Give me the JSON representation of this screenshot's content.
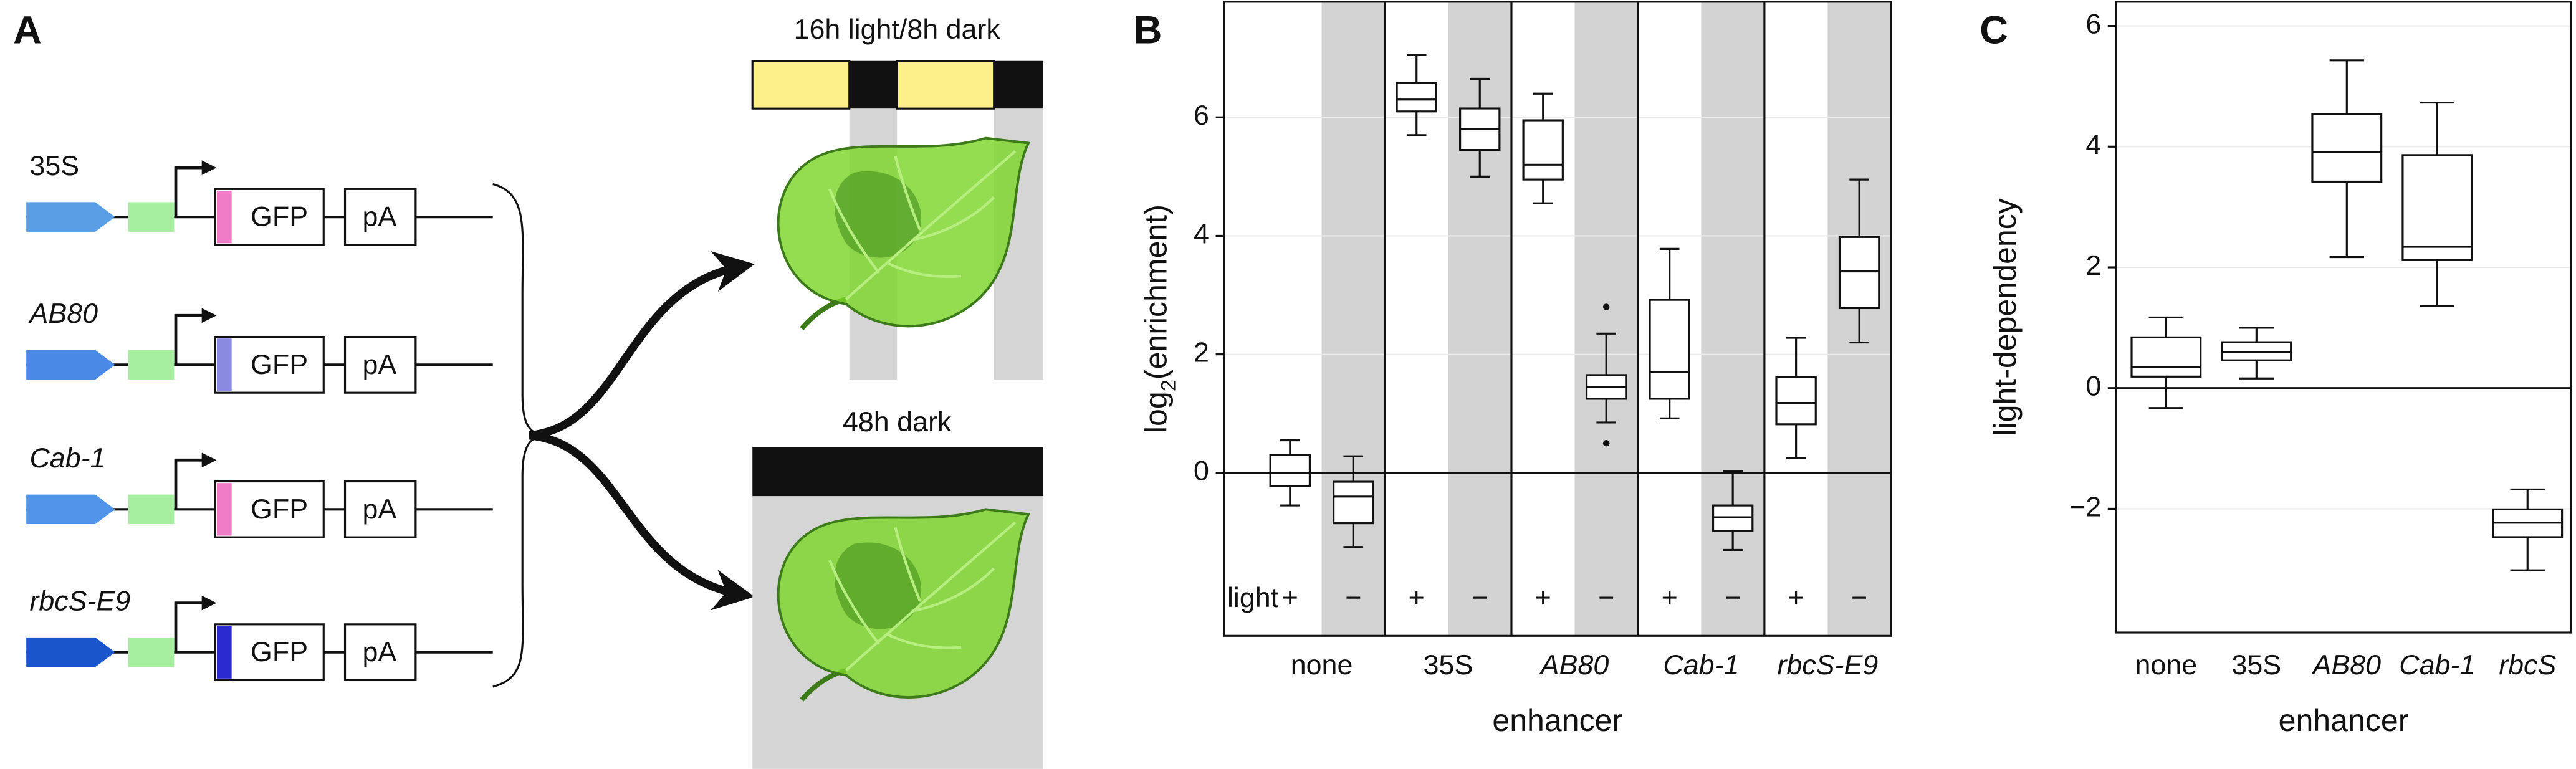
{
  "panel_labels": {
    "a": "A",
    "b": "B",
    "c": "C"
  },
  "constructs": [
    {
      "name": "35S",
      "gfp": "GFP",
      "pa": "pA",
      "enhancer_color": "#5a9ee6",
      "marker_color": "#f07cc8",
      "italic": false
    },
    {
      "name": "AB80",
      "gfp": "GFP",
      "pa": "pA",
      "enhancer_color": "#4a8ae6",
      "marker_color": "#8a8ae0",
      "italic": true
    },
    {
      "name": "Cab-1",
      "gfp": "GFP",
      "pa": "pA",
      "enhancer_color": "#5095ea",
      "marker_color": "#f07cc8",
      "italic": true
    },
    {
      "name": "rbcS-E9",
      "gfp": "GFP",
      "pa": "pA",
      "enhancer_color": "#1a55cc",
      "marker_color": "#2a2ad0",
      "italic": true
    }
  ],
  "conditions": [
    "16h light/8h dark",
    "48h dark"
  ],
  "chart_data": [
    {
      "type": "box",
      "xlabel": "enhancer",
      "ylabel_parts": [
        "log",
        "2",
        "(enrichment)"
      ],
      "light_label": "light",
      "light_levels": [
        "+",
        "−"
      ],
      "shade_color": "#d3d3d3",
      "ylim": [
        -2.75,
        7.95
      ],
      "yticks": [
        0,
        2,
        4,
        6
      ],
      "grid": true,
      "hline": 0,
      "groups": [
        {
          "name": "none",
          "italic": false,
          "boxes": [
            {
              "whislo": -0.55,
              "q1": -0.22,
              "med": 0,
              "q3": 0.3,
              "whishi": 0.55
            },
            {
              "whislo": -1.25,
              "q1": -0.85,
              "med": -0.4,
              "q3": -0.15,
              "whishi": 0.28
            }
          ]
        },
        {
          "name": "35S",
          "italic": false,
          "boxes": [
            {
              "whislo": 5.7,
              "q1": 6.1,
              "med": 6.3,
              "q3": 6.58,
              "whishi": 7.05
            },
            {
              "whislo": 5.0,
              "q1": 5.45,
              "med": 5.8,
              "q3": 6.15,
              "whishi": 6.65
            }
          ]
        },
        {
          "name": "AB80",
          "italic": true,
          "boxes": [
            {
              "whislo": 4.55,
              "q1": 4.95,
              "med": 5.2,
              "q3": 5.95,
              "whishi": 6.4
            },
            {
              "whislo": 0.85,
              "q1": 1.25,
              "med": 1.45,
              "q3": 1.65,
              "whishi": 2.35,
              "fliers": [
                2.8,
                0.5
              ]
            }
          ]
        },
        {
          "name": "Cab-1",
          "italic": true,
          "boxes": [
            {
              "whislo": 0.92,
              "q1": 1.25,
              "med": 1.7,
              "q3": 2.92,
              "whishi": 3.78
            },
            {
              "whislo": -1.3,
              "q1": -0.98,
              "med": -0.75,
              "q3": -0.55,
              "whishi": 0.03
            }
          ]
        },
        {
          "name": "rbcS-E9",
          "italic": true,
          "boxes": [
            {
              "whislo": 0.25,
              "q1": 0.82,
              "med": 1.18,
              "q3": 1.62,
              "whishi": 2.28
            },
            {
              "whislo": 2.2,
              "q1": 2.78,
              "med": 3.4,
              "q3": 3.98,
              "whishi": 4.95
            }
          ]
        }
      ]
    },
    {
      "type": "box",
      "xlabel": "enhancer",
      "ylabel": "light-dependency",
      "ylim": [
        -4.05,
        6.4
      ],
      "yticks": [
        {
          "value": -2,
          "label": "−2"
        },
        0,
        2,
        4,
        6
      ],
      "grid": true,
      "hline": 0,
      "groups": [
        {
          "name": "none",
          "italic": false,
          "boxes": [
            {
              "whislo": -0.33,
              "q1": 0.19,
              "med": 0.35,
              "q3": 0.84,
              "whishi": 1.17
            }
          ]
        },
        {
          "name": "35S",
          "italic": false,
          "boxes": [
            {
              "whislo": 0.16,
              "q1": 0.46,
              "med": 0.6,
              "q3": 0.76,
              "whishi": 1.0
            }
          ]
        },
        {
          "name": "AB80",
          "italic": true,
          "boxes": [
            {
              "whislo": 2.17,
              "q1": 3.42,
              "med": 3.91,
              "q3": 4.54,
              "whishi": 5.43
            }
          ]
        },
        {
          "name": "Cab-1",
          "italic": true,
          "boxes": [
            {
              "whislo": 1.36,
              "q1": 2.12,
              "med": 2.34,
              "q3": 3.86,
              "whishi": 4.73
            }
          ]
        },
        {
          "name": "rbcS",
          "italic": true,
          "boxes": [
            {
              "whislo": -3.02,
              "q1": -2.47,
              "med": -2.23,
              "q3": -2.01,
              "whishi": -1.68
            }
          ]
        }
      ]
    }
  ]
}
